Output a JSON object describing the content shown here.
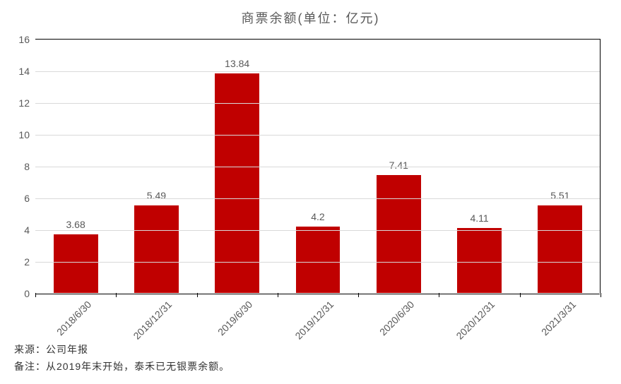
{
  "chart": {
    "type": "bar",
    "title": "商票余额(单位：亿元)",
    "title_fontsize": 18,
    "title_color": "#595959",
    "background_color": "#ffffff",
    "plot_border_color": "#000000",
    "grid_color": "#d9d9d9",
    "bar_color": "#c00000",
    "bar_width_ratio": 0.55,
    "label_fontsize": 14,
    "label_color": "#595959",
    "y": {
      "min": 0,
      "max": 16,
      "step": 2,
      "ticks": [
        0,
        2,
        4,
        6,
        8,
        10,
        12,
        14,
        16
      ]
    },
    "categories": [
      "2018/6/30",
      "2018/12/31",
      "2019/6/30",
      "2019/12/31",
      "2020/6/30",
      "2020/12/31",
      "2021/3/31"
    ],
    "values": [
      3.68,
      5.49,
      13.84,
      4.2,
      7.41,
      4.11,
      5.51
    ],
    "x_label_rotation_deg": -45
  },
  "footer": {
    "source_label": "来源：公司年报",
    "note_label": "备注：从2019年末开始，泰禾已无银票余额。"
  }
}
